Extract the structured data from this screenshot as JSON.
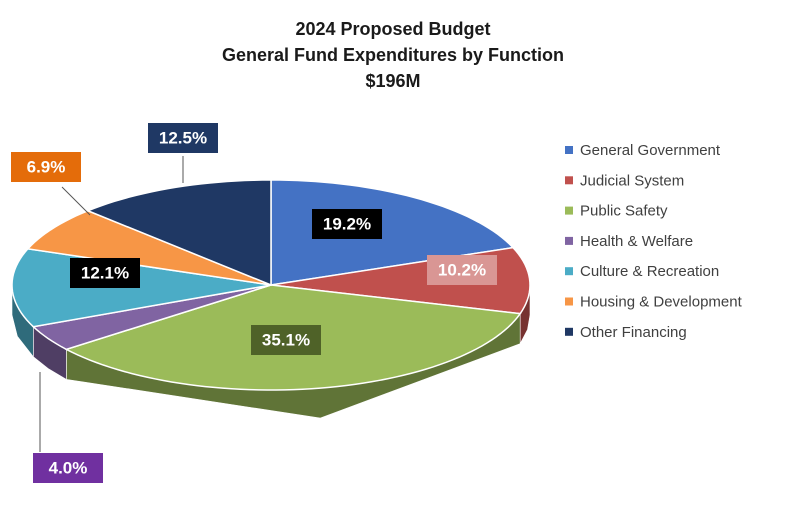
{
  "chart_data": {
    "type": "pie3d",
    "title": [
      "2024 Proposed Budget",
      "General Fund Expenditures by Function",
      "$196M"
    ],
    "categories": [
      "General Government",
      "Judicial System",
      "Public Safety",
      "Health & Welfare",
      "Culture & Recreation",
      "Housing & Development",
      "Other Financing"
    ],
    "values": [
      19.2,
      10.2,
      35.1,
      4.0,
      12.1,
      6.9,
      12.5
    ],
    "value_labels": [
      "19.2%",
      "10.2%",
      "35.1%",
      "4.0%",
      "12.1%",
      "6.9%",
      "12.5%"
    ],
    "colors": [
      "#4472c4",
      "#c0504d",
      "#9bbb59",
      "#8064a2",
      "#4bacc6",
      "#f79646",
      "#1f3864"
    ],
    "legend": "right"
  }
}
